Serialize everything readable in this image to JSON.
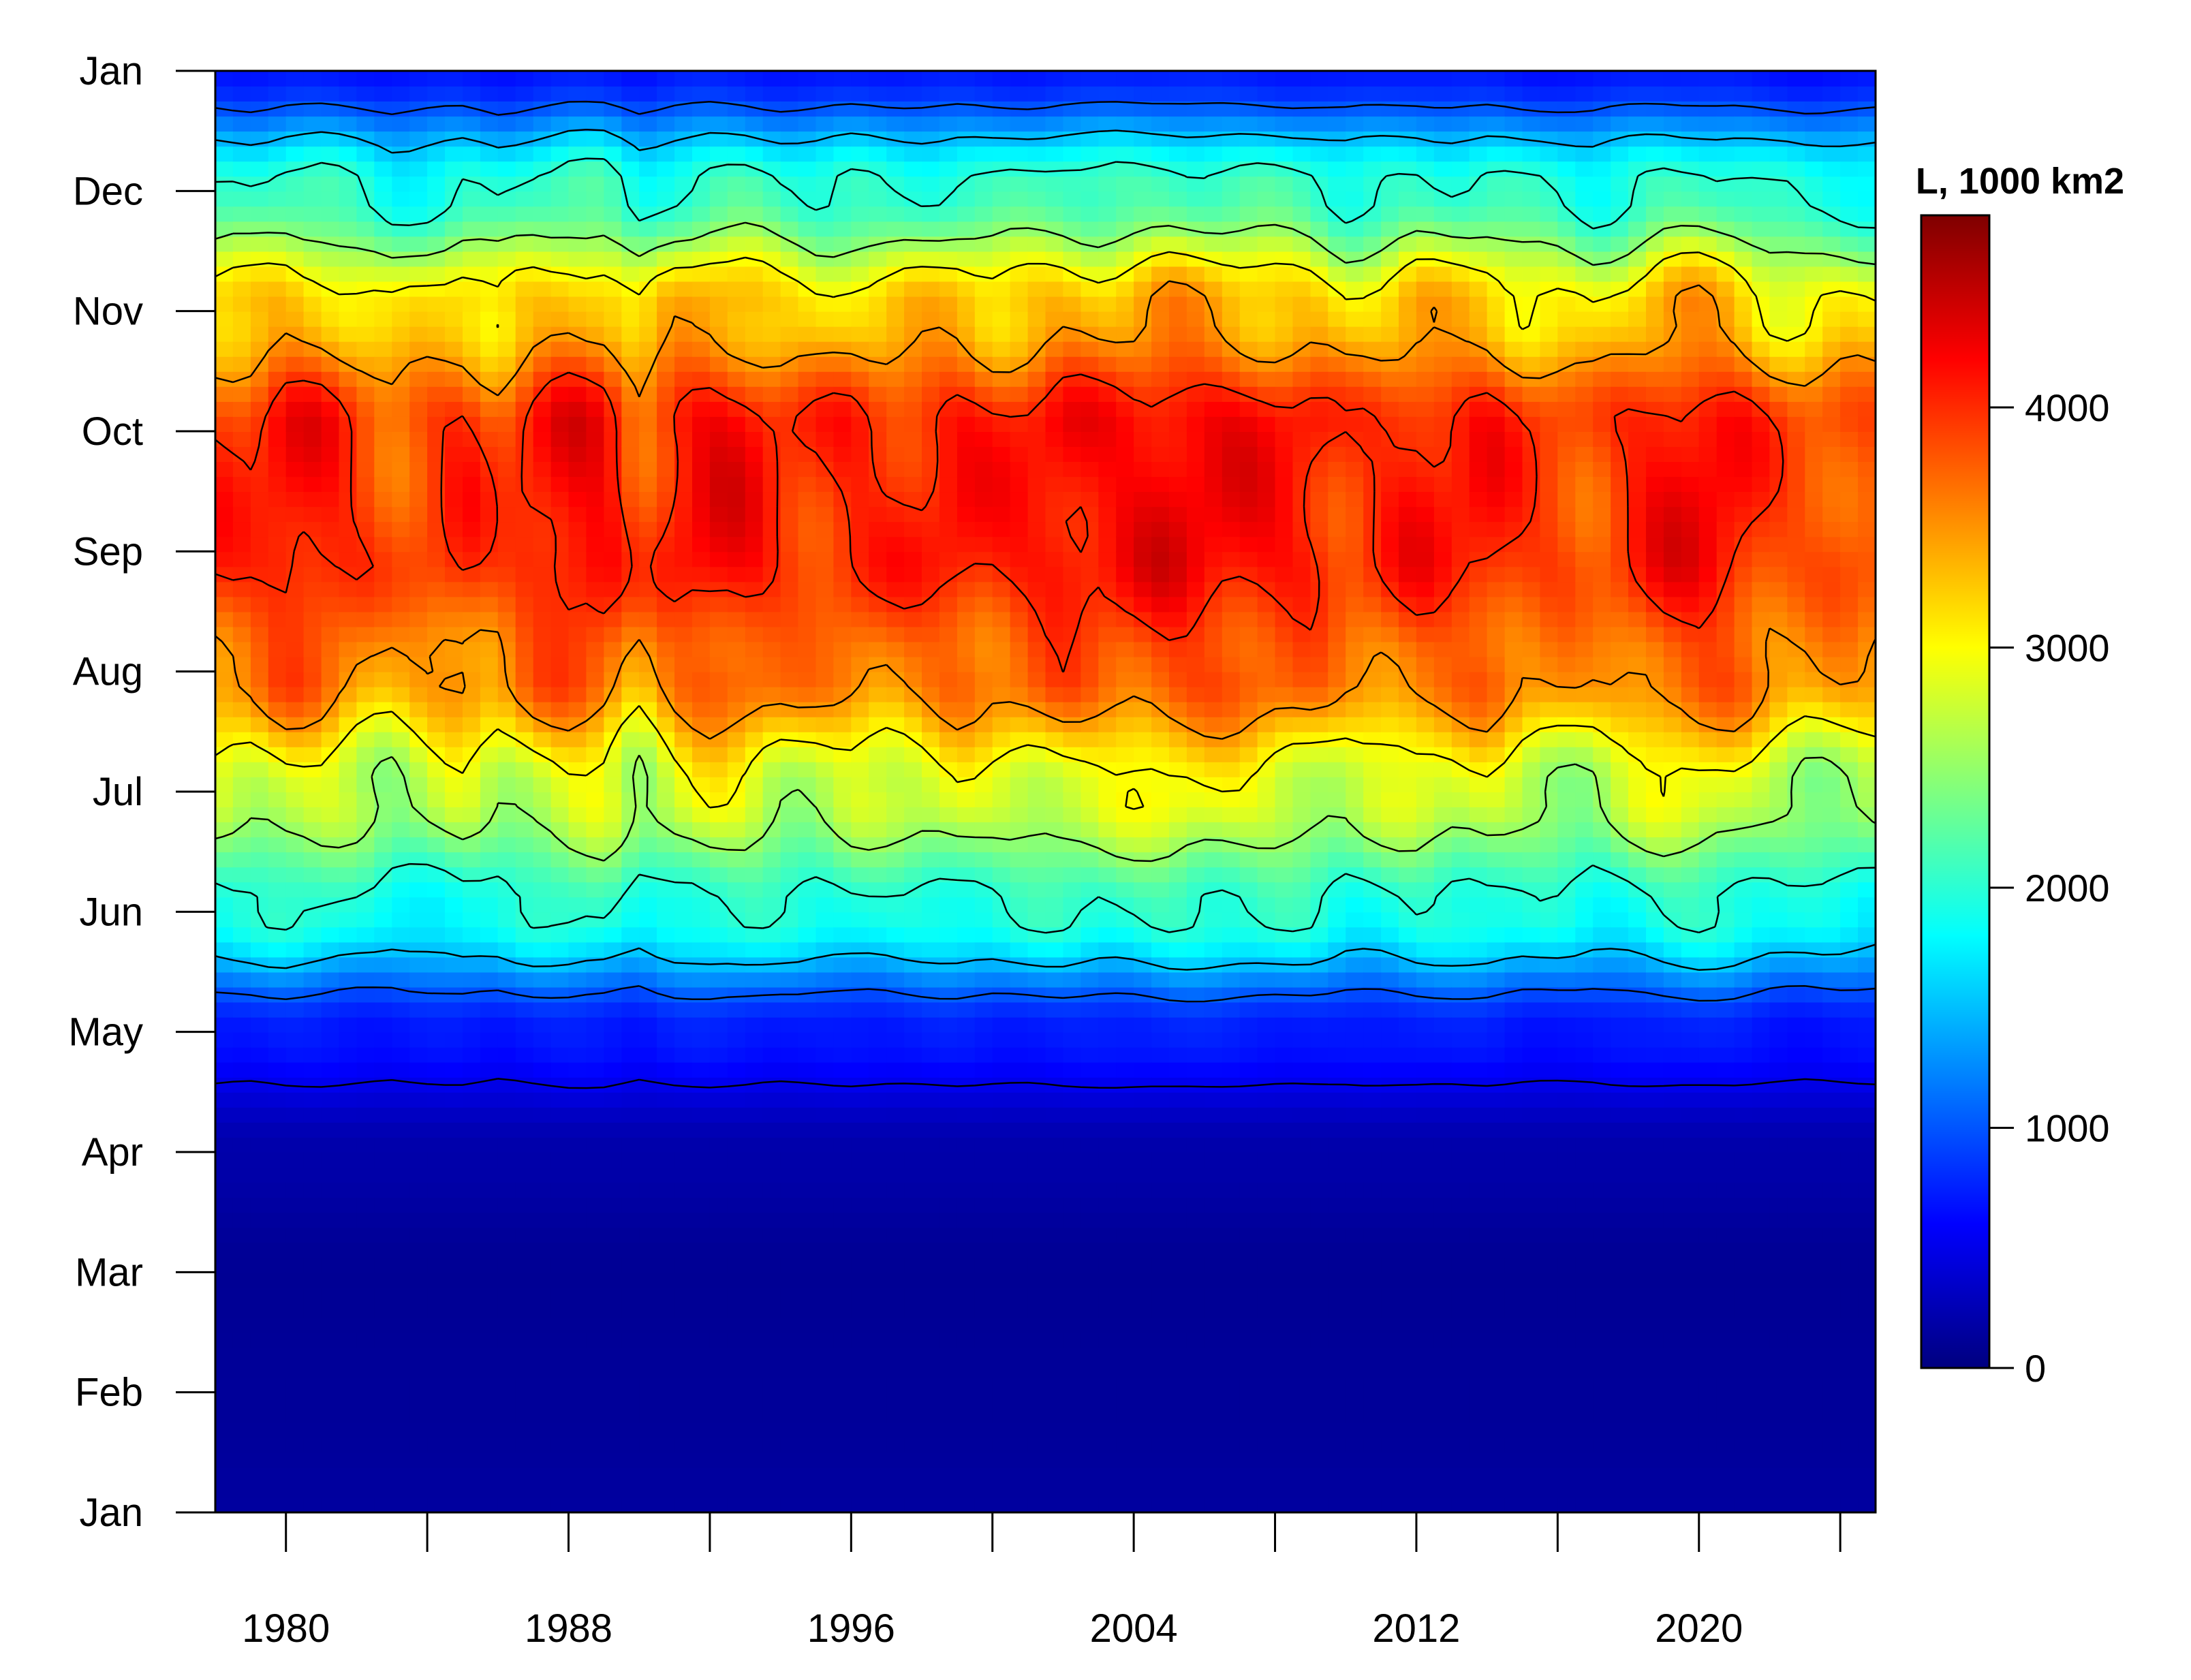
{
  "chart_data": {
    "type": "heatmap",
    "title": "",
    "xlabel": "",
    "ylabel": "",
    "x_range": [
      1978,
      2025
    ],
    "x_ticks": [
      1980,
      1988,
      1996,
      2004,
      2012,
      2020
    ],
    "y_ticks": [
      "Jan",
      "Feb",
      "Mar",
      "Apr",
      "May",
      "Jun",
      "Jul",
      "Aug",
      "Sep",
      "Oct",
      "Nov",
      "Dec",
      "Jan"
    ],
    "colorbar": {
      "title": "L, 1000 km2",
      "range": [
        0,
        4800
      ],
      "ticks": [
        0,
        1000,
        2000,
        3000,
        4000
      ],
      "colors": [
        "#00007F",
        "#0000FF",
        "#007FFF",
        "#00FFFF",
        "#7FFF7F",
        "#FFFF00",
        "#FF7F00",
        "#FF0000",
        "#7F0000"
      ]
    },
    "contour_interval": 500,
    "monthly_climatology": [
      150,
      120,
      100,
      200,
      700,
      1900,
      2700,
      3600,
      4000,
      4000,
      3200,
      2000,
      700
    ],
    "year_anomaly": [
      [
        1979,
        0
      ],
      [
        1980,
        200
      ],
      [
        1981,
        150
      ],
      [
        1982,
        -50
      ],
      [
        1983,
        -250
      ],
      [
        1984,
        -100
      ],
      [
        1985,
        50
      ],
      [
        1986,
        -150
      ],
      [
        1987,
        100
      ],
      [
        1988,
        250
      ],
      [
        1989,
        200
      ],
      [
        1990,
        -250
      ],
      [
        1991,
        100
      ],
      [
        1992,
        250
      ],
      [
        1993,
        200
      ],
      [
        1994,
        0
      ],
      [
        1995,
        -50
      ],
      [
        1996,
        50
      ],
      [
        1997,
        0
      ],
      [
        1998,
        50
      ],
      [
        1999,
        150
      ],
      [
        2000,
        50
      ],
      [
        2001,
        100
      ],
      [
        2002,
        200
      ],
      [
        2003,
        150
      ],
      [
        2004,
        200
      ],
      [
        2005,
        300
      ],
      [
        2006,
        250
      ],
      [
        2007,
        200
      ],
      [
        2008,
        150
      ],
      [
        2009,
        100
      ],
      [
        2010,
        -100
      ],
      [
        2011,
        0
      ],
      [
        2012,
        150
      ],
      [
        2013,
        100
      ],
      [
        2014,
        150
      ],
      [
        2015,
        -50
      ],
      [
        2016,
        -100
      ],
      [
        2017,
        -200
      ],
      [
        2018,
        0
      ],
      [
        2019,
        200
      ],
      [
        2020,
        250
      ],
      [
        2021,
        150
      ],
      [
        2022,
        -100
      ],
      [
        2023,
        -200
      ],
      [
        2024,
        -150
      ]
    ]
  }
}
